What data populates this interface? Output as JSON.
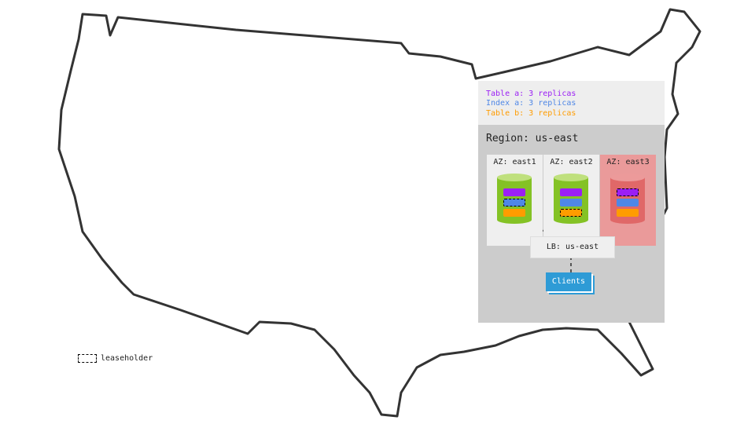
{
  "legend": [
    {
      "text": "Table a: 3 replicas",
      "color": "#9b1ff5"
    },
    {
      "text": "Index a: 3 replicas",
      "color": "#4f87e6"
    },
    {
      "text": "Table b: 3 replicas",
      "color": "#ff9c00"
    }
  ],
  "region": {
    "title": "Region: us-east"
  },
  "azs": [
    {
      "label": "AZ: east1",
      "status": "healthy",
      "leaseholder": "Index a"
    },
    {
      "label": "AZ: east2",
      "status": "healthy",
      "leaseholder": "Table b"
    },
    {
      "label": "AZ: east3",
      "status": "failed",
      "leaseholder": "Table a"
    }
  ],
  "lb": "LB: us-east",
  "clients": "Clients",
  "leaseholder_key": "leaseholder",
  "colors": {
    "healthy_node": "#84c225",
    "failed_node": "#e06868",
    "failed_az": "#ea9a9a",
    "clients": "#2e9bd6"
  }
}
